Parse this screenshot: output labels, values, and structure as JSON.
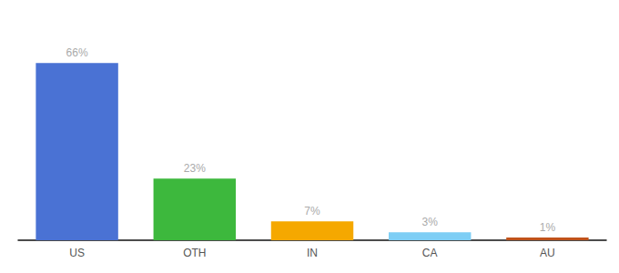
{
  "chart_data": {
    "type": "bar",
    "categories": [
      "US",
      "OTH",
      "IN",
      "CA",
      "AU"
    ],
    "values": [
      66,
      23,
      7,
      3,
      1
    ],
    "value_labels": [
      "66%",
      "23%",
      "7%",
      "3%",
      "1%"
    ],
    "colors": [
      "#4a72d4",
      "#3db83d",
      "#f5a800",
      "#7ecef5",
      "#c0521a"
    ],
    "ylim": [
      0,
      80
    ],
    "grid": false,
    "tick_labels": "x",
    "data_labels": true
  }
}
